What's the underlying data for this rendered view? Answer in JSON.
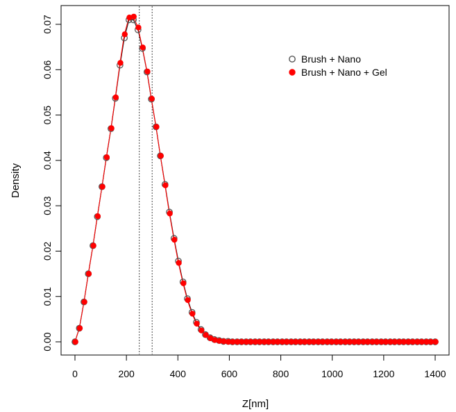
{
  "chart_data": {
    "type": "line",
    "title": "",
    "xlabel": "Z[nm]",
    "ylabel": "Density",
    "xlim": [
      0,
      1400
    ],
    "ylim": [
      0,
      0.0725
    ],
    "x_ticks": [
      0,
      200,
      400,
      600,
      800,
      1000,
      1200,
      1400
    ],
    "y_ticks": [
      0.0,
      0.01,
      0.02,
      0.03,
      0.04,
      0.05,
      0.06,
      0.07
    ],
    "x_tick_labels": [
      "0",
      "200",
      "400",
      "600",
      "800",
      "1000",
      "1200",
      "1400"
    ],
    "y_tick_labels": [
      "0.00",
      "0.01",
      "0.02",
      "0.03",
      "0.04",
      "0.05",
      "0.06",
      "0.07"
    ],
    "vlines": [
      250,
      300
    ],
    "legend_position": "top-right",
    "grid": false,
    "x": [
      0,
      17,
      35,
      52,
      70,
      87,
      105,
      122,
      140,
      157,
      175,
      192,
      210,
      227,
      245,
      262,
      280,
      297,
      315,
      332,
      350,
      367,
      385,
      402,
      420,
      437,
      455,
      472,
      490,
      507,
      525,
      542,
      560,
      577,
      595,
      612,
      630,
      647,
      665,
      682,
      700,
      717,
      735,
      752,
      770,
      787,
      805,
      822,
      840,
      857,
      875,
      892,
      910,
      927,
      945,
      962,
      980,
      997,
      1015,
      1032,
      1050,
      1067,
      1085,
      1102,
      1120,
      1137,
      1155,
      1172,
      1190,
      1207,
      1225,
      1242,
      1260,
      1277,
      1295,
      1312,
      1330,
      1347,
      1365,
      1382,
      1400
    ],
    "series": [
      {
        "name": "Brush + Nano",
        "color": "#555555",
        "marker": "open-circle",
        "values": [
          0.0,
          0.003,
          0.0088,
          0.015,
          0.0212,
          0.0276,
          0.0342,
          0.0406,
          0.047,
          0.0537,
          0.061,
          0.067,
          0.071,
          0.071,
          0.0688,
          0.0647,
          0.0595,
          0.0535,
          0.0474,
          0.041,
          0.0347,
          0.0286,
          0.0228,
          0.0178,
          0.0132,
          0.0095,
          0.0065,
          0.0043,
          0.0027,
          0.0016,
          0.0009,
          0.0005,
          0.0003,
          0.0001,
          0.0001,
          0.0,
          0.0,
          0.0,
          0.0,
          0.0,
          0.0,
          0.0,
          0.0,
          0.0,
          0.0,
          0.0,
          0.0,
          0.0,
          0.0,
          0.0,
          0.0,
          0.0,
          0.0,
          0.0,
          0.0,
          0.0,
          0.0,
          0.0,
          0.0,
          0.0,
          0.0,
          0.0,
          0.0,
          0.0,
          0.0,
          0.0,
          0.0,
          0.0,
          0.0,
          0.0,
          0.0,
          0.0,
          0.0,
          0.0,
          0.0,
          0.0,
          0.0,
          0.0,
          0.0,
          0.0,
          0.0
        ]
      },
      {
        "name": "Brush + Nano + Gel",
        "color": "#ff0000",
        "marker": "filled-circle",
        "values": [
          0.0,
          0.003,
          0.0088,
          0.015,
          0.0212,
          0.0277,
          0.0342,
          0.0407,
          0.0471,
          0.0539,
          0.0615,
          0.0678,
          0.0715,
          0.0717,
          0.0693,
          0.0649,
          0.0596,
          0.0536,
          0.0474,
          0.041,
          0.0345,
          0.0283,
          0.0225,
          0.0174,
          0.0129,
          0.0092,
          0.0062,
          0.004,
          0.0025,
          0.0015,
          0.0008,
          0.0004,
          0.0002,
          0.0001,
          0.0,
          0.0,
          0.0,
          0.0,
          0.0,
          0.0,
          0.0,
          0.0,
          0.0,
          0.0,
          0.0,
          0.0,
          0.0,
          0.0,
          0.0,
          0.0,
          0.0,
          0.0,
          0.0,
          0.0,
          0.0,
          0.0,
          0.0,
          0.0,
          0.0,
          0.0,
          0.0,
          0.0,
          0.0,
          0.0,
          0.0,
          0.0,
          0.0,
          0.0,
          0.0,
          0.0,
          0.0,
          0.0,
          0.0,
          0.0,
          0.0,
          0.0,
          0.0,
          0.0,
          0.0,
          0.0,
          0.0
        ]
      }
    ]
  }
}
